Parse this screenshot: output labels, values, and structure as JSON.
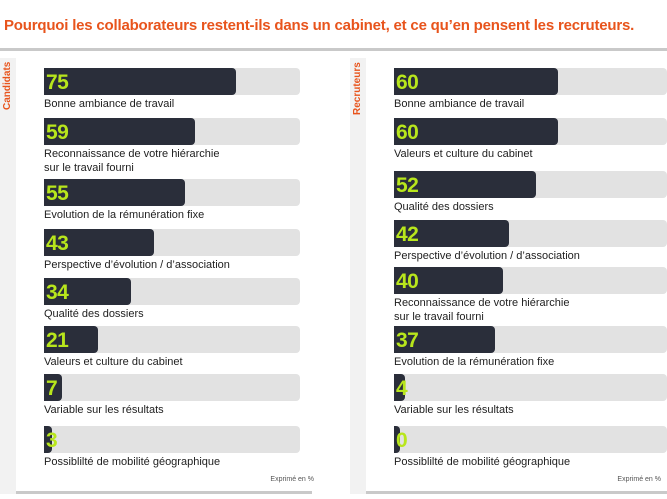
{
  "title": "Pourquoi les collaborateurs restent-ils dans un cabinet, et ce qu’en pensent les recruteurs.",
  "chart_data": [
    {
      "type": "bar",
      "orientation": "horizontal",
      "panel_label": "Candidats",
      "xlim": [
        0,
        100
      ],
      "footnote": "Exprimé en %",
      "categories": [
        "Bonne ambiance de travail",
        "Reconnaissance de votre hiérarchie\nsur le travail fourni",
        "Evolution de la rémunération fixe",
        "Perspective d’évolution / d’association",
        "Qualité des dossiers",
        "Valeurs et culture du cabinet",
        "Variable sur les résultats",
        "Possiblilté de mobilité géographique"
      ],
      "values": [
        75,
        59,
        55,
        43,
        34,
        21,
        7,
        3
      ]
    },
    {
      "type": "bar",
      "orientation": "horizontal",
      "panel_label": "Recruteurs",
      "xlim": [
        0,
        100
      ],
      "footnote": "Exprimé en %",
      "categories": [
        "Bonne ambiance de travail",
        "Valeurs et culture du cabinet",
        "Qualité des dossiers",
        "Perspective d’évolution / d’association",
        "Reconnaissance de votre hiérarchie\nsur le travail fourni",
        "Evolution de la rémunération fixe",
        "Variable sur les résultats",
        "Possiblilté de mobilité géographique"
      ],
      "values": [
        60,
        60,
        52,
        42,
        40,
        37,
        4,
        0
      ]
    }
  ]
}
